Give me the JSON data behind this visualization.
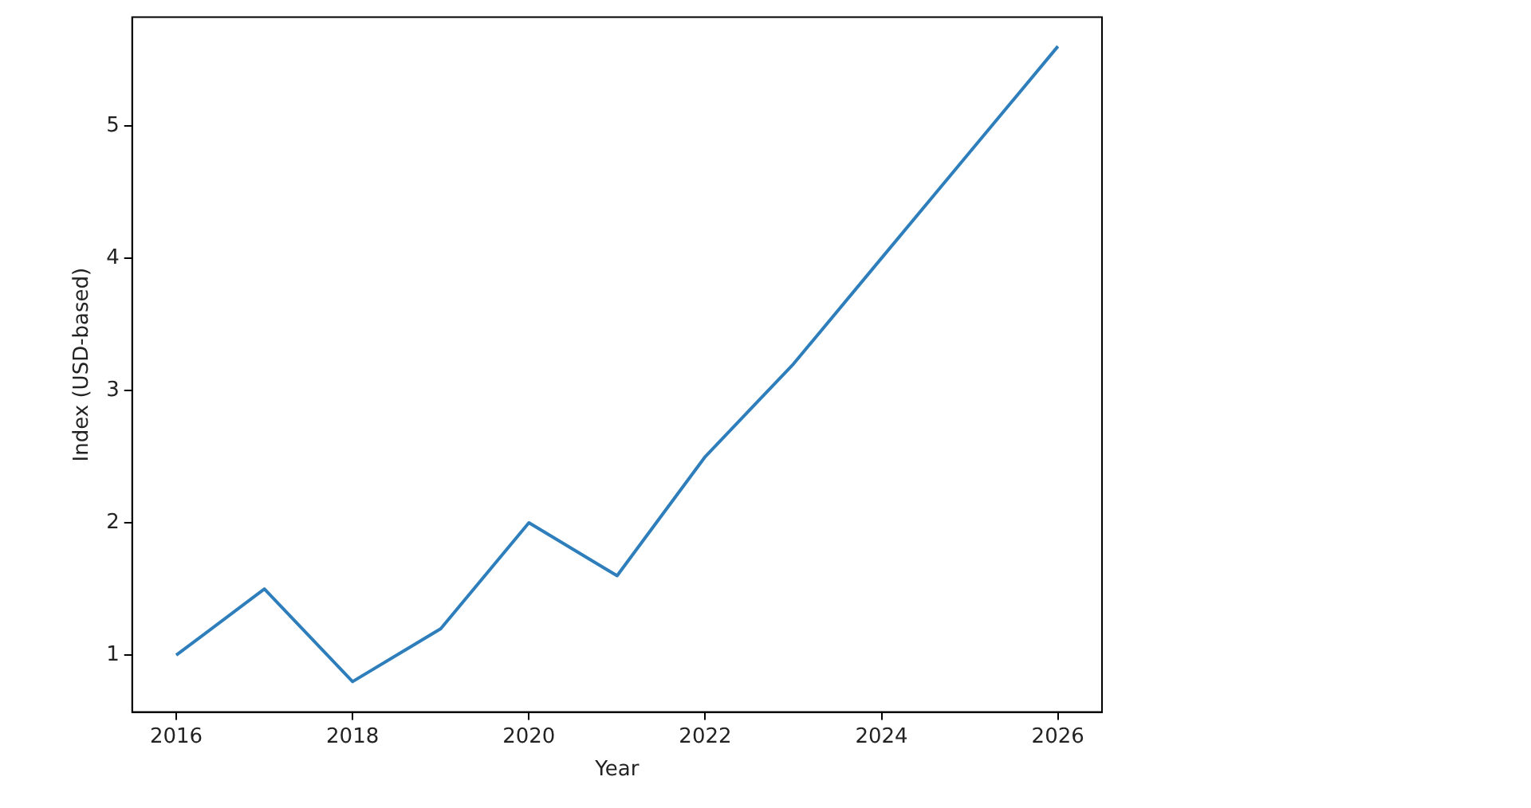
{
  "chart_data": {
    "type": "line",
    "xlabel": "Year",
    "ylabel": "Index (USD-based)",
    "x": [
      2016,
      2017,
      2018,
      2019,
      2020,
      2021,
      2022,
      2023,
      2024,
      2025,
      2026
    ],
    "series": [
      {
        "color": "#2e7ebc",
        "values": [
          1.0,
          1.5,
          0.8,
          1.2,
          2.0,
          1.6,
          2.5,
          3.2,
          4.0,
          4.8,
          5.6
        ]
      }
    ],
    "xlim": [
      2015.5,
      2026.5
    ],
    "xticks": [
      2016,
      2018,
      2020,
      2022,
      2024,
      2026
    ],
    "ylim": [
      0.57,
      5.82
    ],
    "yticks": [
      1,
      2,
      3,
      4,
      5
    ],
    "grid": false,
    "legend": false,
    "marker": "none",
    "line_style": "solid"
  }
}
